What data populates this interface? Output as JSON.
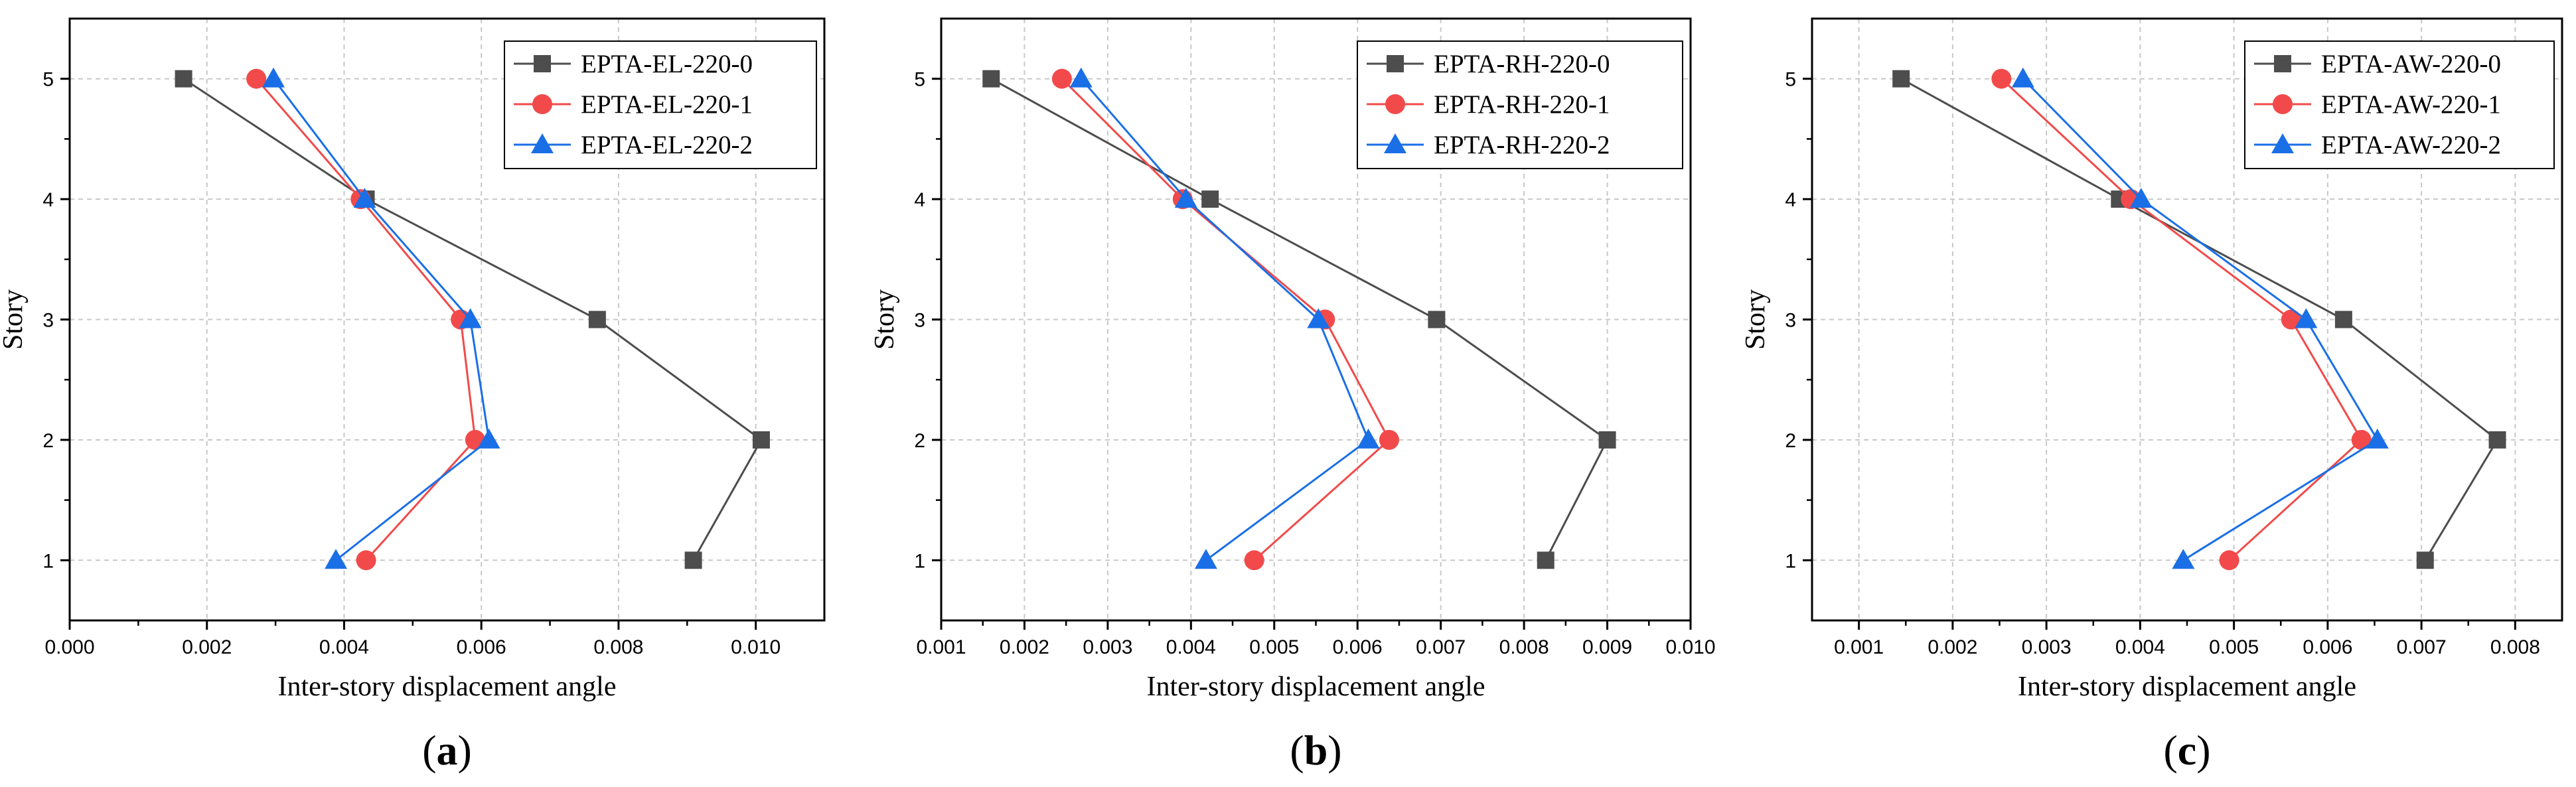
{
  "chart_data": [
    {
      "type": "line",
      "panel_label": "a",
      "xlabel": "Inter-story displacement angle",
      "ylabel": "Story",
      "xlim": [
        0.0,
        0.011
      ],
      "ylim": [
        0.5,
        5.5
      ],
      "xticks": [
        "0.000",
        "0.002",
        "0.004",
        "0.006",
        "0.008",
        "0.010"
      ],
      "xtick_values": [
        0.0,
        0.002,
        0.004,
        0.006,
        0.008,
        0.01
      ],
      "yticks": [
        "1",
        "2",
        "3",
        "4",
        "5"
      ],
      "ytick_values": [
        1,
        2,
        3,
        4,
        5
      ],
      "grid": true,
      "legend_position": "top-right",
      "series": [
        {
          "name": "EPTA-EL-220-0",
          "color": "#4d4d4d",
          "marker": "square",
          "x": [
            0.00909,
            0.01008,
            0.00769,
            0.00432,
            0.00166
          ],
          "y": [
            1,
            2,
            3,
            4,
            5
          ]
        },
        {
          "name": "EPTA-EL-220-1",
          "color": "#f24a4a",
          "marker": "circle",
          "x": [
            0.00432,
            0.00591,
            0.0057,
            0.00424,
            0.00272
          ],
          "y": [
            1,
            2,
            3,
            4,
            5
          ]
        },
        {
          "name": "EPTA-EL-220-2",
          "color": "#1a6fe6",
          "marker": "triangle",
          "x": [
            0.00388,
            0.00611,
            0.00584,
            0.0043,
            0.00297
          ],
          "y": [
            1,
            2,
            3,
            4,
            5
          ]
        }
      ]
    },
    {
      "type": "line",
      "panel_label": "b",
      "xlabel": "Inter-story displacement angle",
      "ylabel": "Story",
      "xlim": [
        0.001,
        0.01
      ],
      "ylim": [
        0.5,
        5.5
      ],
      "xticks": [
        "0.001",
        "0.002",
        "0.003",
        "0.004",
        "0.005",
        "0.006",
        "0.007",
        "0.008",
        "0.009",
        "0.010"
      ],
      "xtick_values": [
        0.001,
        0.002,
        0.003,
        0.004,
        0.005,
        0.006,
        0.007,
        0.008,
        0.009,
        0.01
      ],
      "yticks": [
        "1",
        "2",
        "3",
        "4",
        "5"
      ],
      "ytick_values": [
        1,
        2,
        3,
        4,
        5
      ],
      "grid": true,
      "legend_position": "top-right",
      "series": [
        {
          "name": "EPTA-RH-220-0",
          "color": "#4d4d4d",
          "marker": "square",
          "x": [
            0.00826,
            0.009,
            0.00695,
            0.00423,
            0.0016
          ],
          "y": [
            1,
            2,
            3,
            4,
            5
          ]
        },
        {
          "name": "EPTA-RH-220-1",
          "color": "#f24a4a",
          "marker": "circle",
          "x": [
            0.00476,
            0.00638,
            0.00561,
            0.0039,
            0.00245
          ],
          "y": [
            1,
            2,
            3,
            4,
            5
          ]
        },
        {
          "name": "EPTA-RH-220-2",
          "color": "#1a6fe6",
          "marker": "triangle",
          "x": [
            0.00418,
            0.00613,
            0.00553,
            0.00394,
            0.00268
          ],
          "y": [
            1,
            2,
            3,
            4,
            5
          ]
        }
      ]
    },
    {
      "type": "line",
      "panel_label": "c",
      "xlabel": "Inter-story displacement angle",
      "ylabel": "Story",
      "xlim": [
        0.0005,
        0.0085
      ],
      "ylim": [
        0.5,
        5.5
      ],
      "xticks": [
        "0.001",
        "0.002",
        "0.003",
        "0.004",
        "0.005",
        "0.006",
        "0.007",
        "0.008"
      ],
      "xtick_values": [
        0.001,
        0.002,
        0.003,
        0.004,
        0.005,
        0.006,
        0.007,
        0.008
      ],
      "yticks": [
        "1",
        "2",
        "3",
        "4",
        "5"
      ],
      "ytick_values": [
        1,
        2,
        3,
        4,
        5
      ],
      "grid": true,
      "legend_position": "top-right",
      "series": [
        {
          "name": "EPTA-AW-220-0",
          "color": "#4d4d4d",
          "marker": "square",
          "x": [
            0.00704,
            0.00781,
            0.00617,
            0.00378,
            0.00145
          ],
          "y": [
            1,
            2,
            3,
            4,
            5
          ]
        },
        {
          "name": "EPTA-AW-220-1",
          "color": "#f24a4a",
          "marker": "circle",
          "x": [
            0.00495,
            0.00636,
            0.00561,
            0.0039,
            0.00252
          ],
          "y": [
            1,
            2,
            3,
            4,
            5
          ]
        },
        {
          "name": "EPTA-AW-220-2",
          "color": "#1a6fe6",
          "marker": "triangle",
          "x": [
            0.00446,
            0.00653,
            0.00577,
            0.00401,
            0.00275
          ],
          "y": [
            1,
            2,
            3,
            4,
            5
          ]
        }
      ]
    }
  ]
}
